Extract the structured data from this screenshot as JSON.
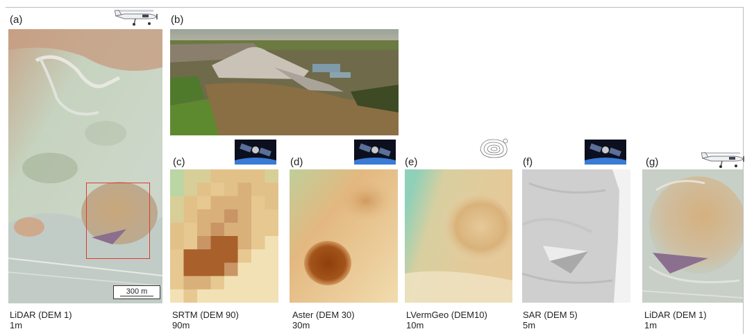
{
  "panels": {
    "a": {
      "letter": "(a)",
      "caption_line1": "LiDAR (DEM 1)",
      "caption_line2": "1m",
      "scalebar": "300 m",
      "icon": "airplane-icon"
    },
    "b": {
      "letter": "(b)"
    },
    "c": {
      "letter": "(c)",
      "caption_line1": "SRTM (DEM 90)",
      "caption_line2": "90m",
      "icon": "satellite-icon"
    },
    "d": {
      "letter": "(d)",
      "caption_line1": "Aster (DEM 30)",
      "caption_line2": "30m",
      "icon": "satellite-icon"
    },
    "e": {
      "letter": "(e)",
      "caption_line1": "LVermGeo (DEM10)",
      "caption_line2": "10m",
      "icon": "contour-map-icon"
    },
    "f": {
      "letter": "(f)",
      "caption_line1": "SAR (DEM 5)",
      "caption_line2": "5m",
      "icon": "satellite-icon"
    },
    "g": {
      "letter": "(g)",
      "caption_line1": "LiDAR (DEM 1)",
      "caption_line2": "1m",
      "icon": "airplane-icon"
    }
  },
  "colors": {
    "highlight_box": "#e0392b",
    "terrain_light": "#c9d6b8",
    "terrain_tan": "#d9b27a",
    "terrain_dark": "#8c4a14"
  }
}
